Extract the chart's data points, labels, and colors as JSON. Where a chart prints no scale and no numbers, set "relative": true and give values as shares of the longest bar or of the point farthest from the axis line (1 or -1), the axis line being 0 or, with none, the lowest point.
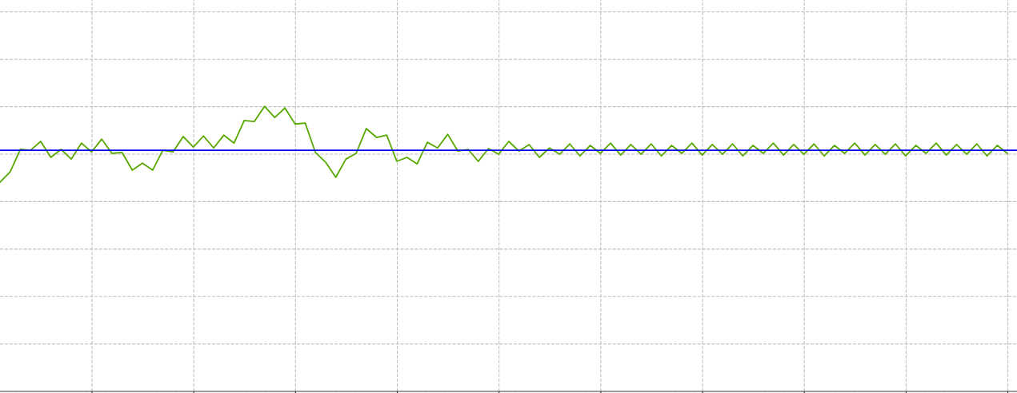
{
  "chart_data": {
    "type": "line",
    "relative": true,
    "grid": true,
    "line_style": "solid",
    "marker": "none",
    "categories": [
      null,
      null,
      null,
      null,
      null,
      null,
      null,
      null,
      null,
      null,
      null,
      null,
      null,
      null,
      null,
      null,
      null,
      null,
      null,
      null,
      null,
      null,
      null,
      null,
      null,
      null,
      null,
      null,
      null,
      null,
      null,
      null,
      null,
      null,
      null,
      null,
      null,
      null,
      null,
      null,
      null,
      null,
      null,
      null,
      null,
      null,
      null,
      null,
      null,
      null,
      null,
      null,
      null,
      null,
      null,
      null,
      null,
      null,
      null,
      null,
      null,
      null,
      null,
      null,
      null,
      null,
      null,
      null,
      null,
      null,
      null,
      null,
      null,
      null,
      null,
      null,
      null,
      null,
      null,
      null,
      null,
      null,
      null,
      null,
      null,
      null,
      null,
      null,
      null,
      null,
      null,
      null,
      null,
      null,
      null,
      null,
      null,
      null,
      null,
      null
    ],
    "series": [
      {
        "color": "#58a800",
        "values": [
          0.734,
          0.77,
          0.849,
          0.846,
          0.877,
          0.821,
          0.849,
          0.815,
          0.871,
          0.84,
          0.885,
          0.835,
          0.838,
          0.776,
          0.801,
          0.776,
          0.846,
          0.84,
          0.894,
          0.857,
          0.896,
          0.854,
          0.899,
          0.871,
          0.95,
          0.947,
          1,
          0.961,
          0.994,
          0.938,
          0.941,
          0.838,
          0.804,
          0.751,
          0.815,
          0.835,
          0.922,
          0.891,
          0.899,
          0.807,
          0.821,
          0.798,
          0.874,
          0.854,
          0.902,
          0.843,
          0.849,
          0.807,
          0.852,
          0.832,
          0.877,
          0.843,
          0.866,
          0.821,
          0.854,
          0.832,
          0.868,
          0.826,
          0.863,
          0.835,
          0.871,
          0.829,
          0.866,
          0.832,
          0.868,
          0.826,
          0.863,
          0.835,
          0.871,
          0.829,
          0.866,
          0.832,
          0.868,
          0.826,
          0.863,
          0.835,
          0.871,
          0.829,
          0.866,
          0.832,
          0.868,
          0.826,
          0.863,
          0.835,
          0.871,
          0.829,
          0.866,
          0.832,
          0.868,
          0.826,
          0.863,
          0.835,
          0.871,
          0.829,
          0.866,
          0.832,
          0.868,
          0.826,
          0.863,
          0.835
        ]
      }
    ],
    "ref_lines": [
      {
        "axis": "y",
        "value": 0.846,
        "color": "#0000ff",
        "line_style": "solid"
      }
    ]
  }
}
